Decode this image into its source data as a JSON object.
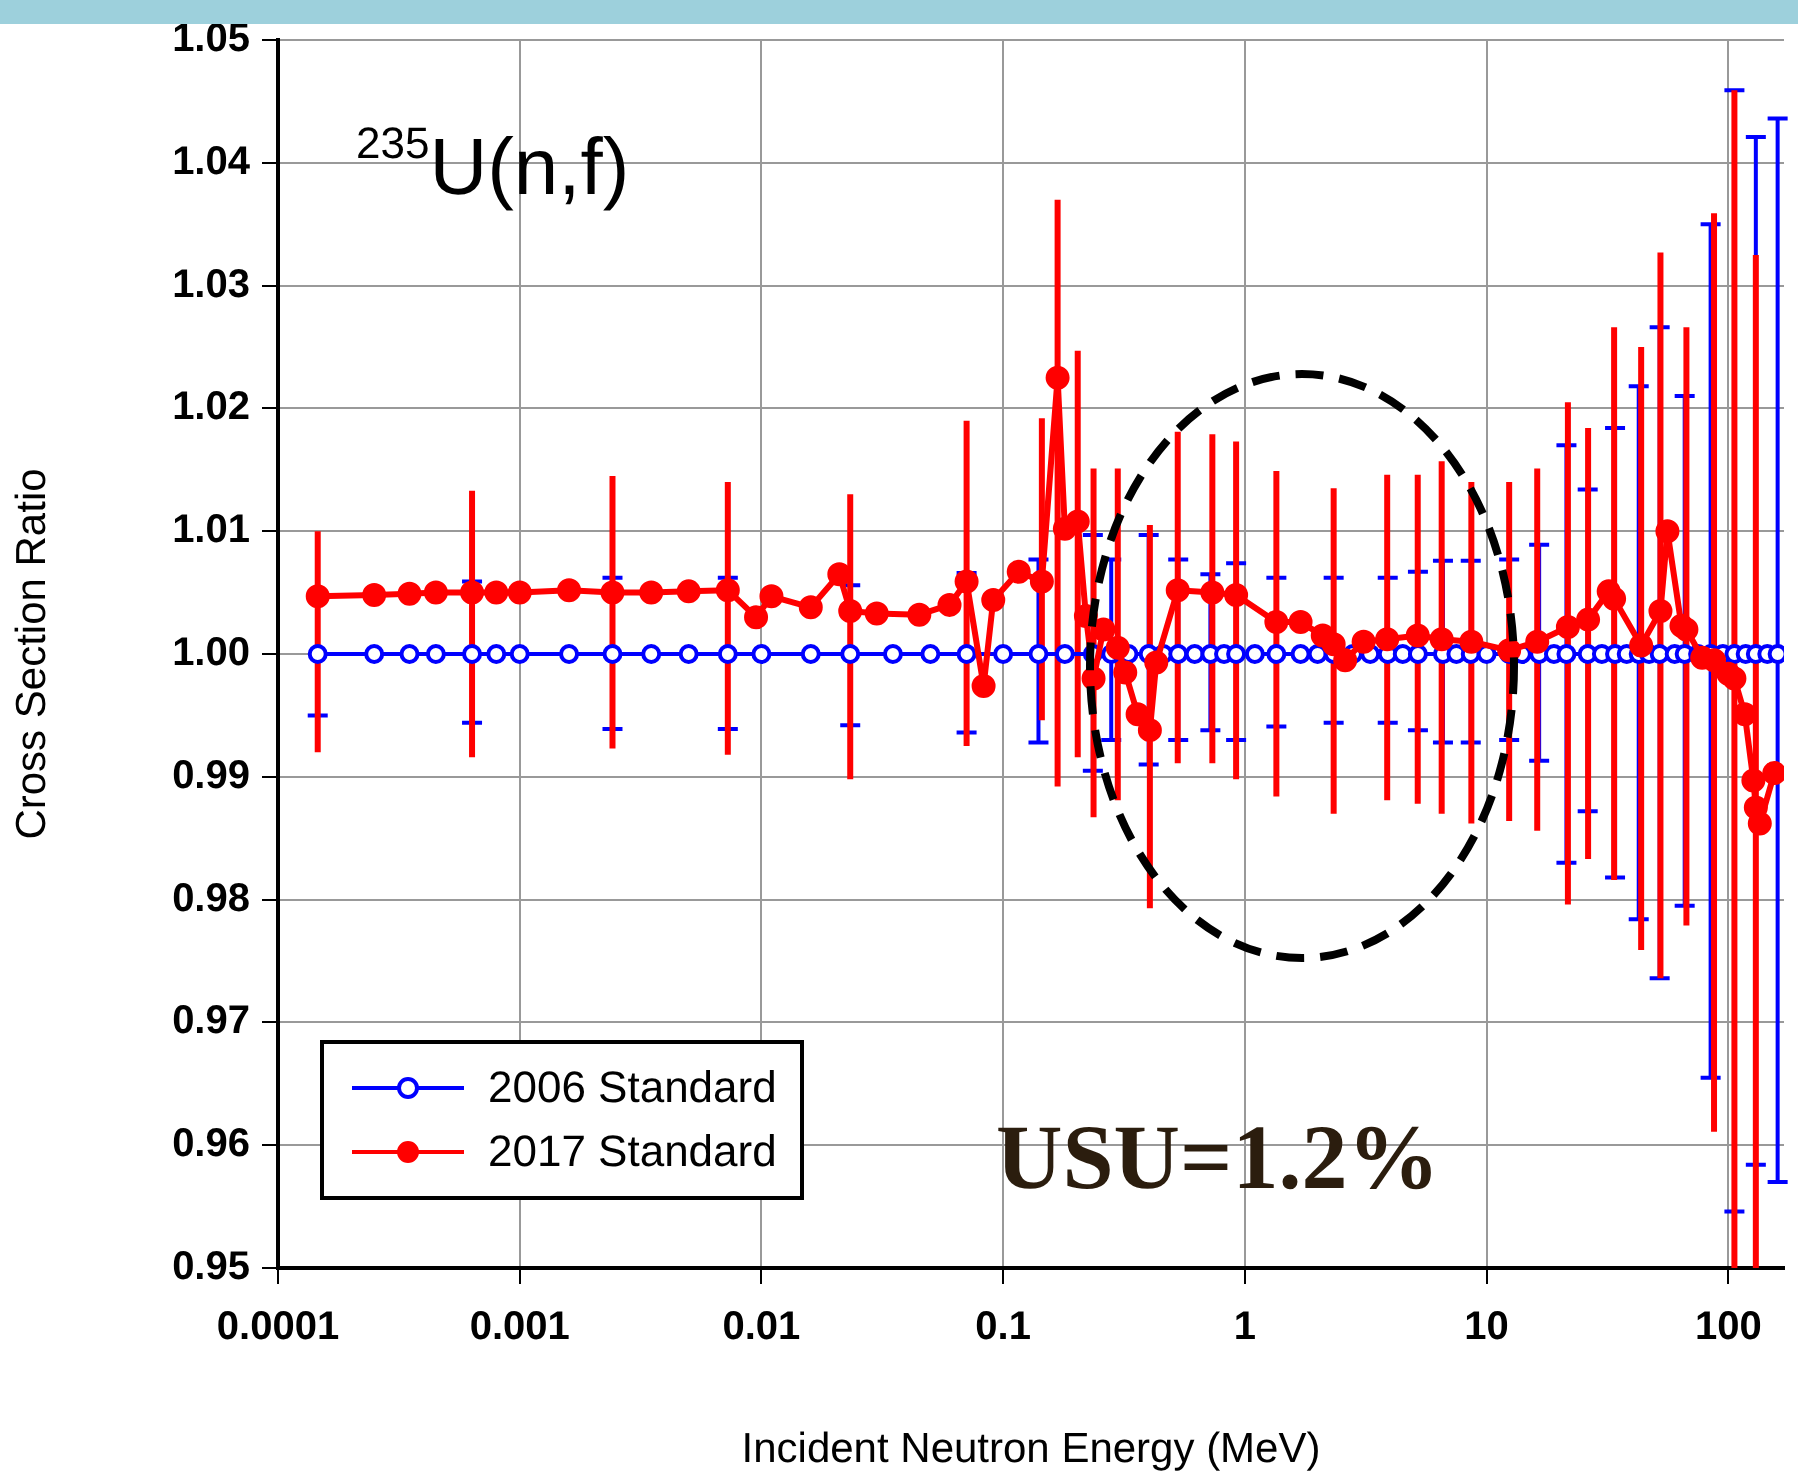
{
  "chart_data": {
    "type": "line",
    "title": "$^{235}$U(n,f)",
    "xlabel": "Incident Neutron Energy (MeV)",
    "ylabel": "Cross Section Ratio",
    "annotations": [
      "USU=1.2%"
    ],
    "log": "x",
    "xlim": [
      0.0001,
      170
    ],
    "xticks": [
      0.0001,
      0.001,
      0.01,
      0.1,
      1,
      10,
      100
    ],
    "ylim": [
      0.95,
      1.05
    ],
    "yticks": [
      0.95,
      0.96,
      0.97,
      0.98,
      0.99,
      {
        "value": 1,
        "label": "1.00"
      },
      1.01,
      1.02,
      1.03,
      1.04,
      1.05
    ],
    "grid": true,
    "legend": "bottom left",
    "marker": "circle",
    "line_style": "solid",
    "series": [
      {
        "name": "2006 Standard",
        "color": "#0000ff",
        "x": [
          0.000146,
          0.00025,
          0.00035,
          0.00045,
          0.000635,
          0.0008,
          0.001,
          0.0016,
          0.00242,
          0.0035,
          0.005,
          0.00726,
          0.01,
          0.016,
          0.0233,
          0.035,
          0.05,
          0.0706,
          0.1,
          0.14,
          0.18,
          0.235,
          0.28,
          0.33,
          0.4,
          0.46,
          0.53,
          0.62,
          0.72,
          0.82,
          0.92,
          1.1,
          1.35,
          1.7,
          2,
          2.33,
          2.8,
          3.3,
          3.9,
          4.5,
          5.2,
          6.6,
          7.5,
          8.6,
          10,
          12.4,
          14,
          16.5,
          19,
          21.4,
          26.2,
          30,
          34,
          38,
          42.6,
          47,
          52,
          60,
          66,
          75,
          84.5,
          95,
          106,
          118,
          130,
          145,
          160
        ],
        "values": [
          1,
          1,
          1,
          1,
          1,
          1,
          1,
          1,
          1,
          1,
          1,
          1,
          1,
          1,
          1,
          1,
          1,
          1,
          1,
          1,
          1,
          1,
          1,
          1,
          1,
          1,
          1,
          1,
          1,
          1,
          1,
          1,
          1,
          1,
          1,
          1,
          1,
          1,
          1,
          1,
          1,
          1,
          1,
          1,
          1,
          1,
          1,
          1,
          1,
          1,
          1,
          1,
          1,
          1,
          1,
          1,
          1,
          1,
          1,
          1,
          1,
          1,
          1,
          1,
          1,
          1,
          1
        ],
        "errors": [
          [
            0.995,
            1.005
          ],
          null,
          null,
          null,
          [
            0.9944,
            1.0059
          ],
          null,
          null,
          null,
          [
            0.9939,
            1.0062
          ],
          null,
          null,
          [
            0.9939,
            1.0062
          ],
          null,
          null,
          [
            0.9942,
            1.0056
          ],
          null,
          null,
          [
            0.9936,
            1.0066
          ],
          null,
          [
            0.9928,
            1.0077
          ],
          null,
          [
            0.9905,
            1.0097
          ],
          [
            0.993,
            1.0077
          ],
          null,
          [
            0.991,
            1.0097
          ],
          null,
          [
            0.993,
            1.0077
          ],
          null,
          [
            0.9938,
            1.0065
          ],
          null,
          [
            0.993,
            1.0074
          ],
          null,
          [
            0.9941,
            1.0062
          ],
          null,
          null,
          [
            0.9944,
            1.0062
          ],
          null,
          null,
          [
            0.9944,
            1.0062
          ],
          null,
          [
            0.9938,
            1.0067
          ],
          [
            0.9928,
            1.0076
          ],
          null,
          [
            0.9928,
            1.0076
          ],
          null,
          [
            0.993,
            1.0077
          ],
          null,
          [
            0.9913,
            1.0089
          ],
          null,
          [
            0.983,
            1.017
          ],
          [
            0.9872,
            1.0134
          ],
          null,
          [
            0.9818,
            1.0184
          ],
          null,
          [
            0.9784,
            1.0218
          ],
          null,
          [
            0.9736,
            1.0266
          ],
          null,
          [
            0.9795,
            1.021
          ],
          null,
          [
            0.9655,
            1.035
          ],
          null,
          [
            0.9546,
            1.0459
          ],
          null,
          [
            0.9584,
            1.0421
          ],
          null,
          [
            0.957,
            1.0436
          ]
        ]
      },
      {
        "name": "2017 Standard",
        "color": "#ff0000",
        "x": [
          0.000146,
          0.00025,
          0.00035,
          0.00045,
          0.000635,
          0.0008,
          0.001,
          0.0016,
          0.00242,
          0.0035,
          0.005,
          0.00726,
          0.0095,
          0.011,
          0.016,
          0.021,
          0.0233,
          0.03,
          0.045,
          0.06,
          0.0706,
          0.083,
          0.091,
          0.116,
          0.1446,
          0.168,
          0.18,
          0.2035,
          0.22,
          0.2366,
          0.26,
          0.298,
          0.32,
          0.36,
          0.4046,
          0.43,
          0.5276,
          0.7336,
          0.92,
          1.35,
          1.7,
          2.1,
          2.33,
          2.6,
          3.1,
          3.88,
          5.19,
          6.52,
          8.65,
          12.4,
          16.2,
          21.7,
          26.3,
          32,
          33.7,
          43.6,
          52.4,
          56,
          64,
          67.1,
          78,
          87.3,
          100,
          106,
          117,
          127,
          130,
          135,
          155
        ],
        "values": [
          1.0047,
          1.0048,
          1.0049,
          1.005,
          1.005,
          1.005,
          1.005,
          1.0052,
          1.005,
          1.005,
          1.0051,
          1.0052,
          1.003,
          1.0047,
          1.0038,
          1.0065,
          1.0035,
          1.0033,
          1.0032,
          1.004,
          1.0059,
          0.9974,
          1.0044,
          1.0067,
          1.0059,
          1.0225,
          1.0102,
          1.0108,
          1.0031,
          0.998,
          1.002,
          1.0005,
          0.9985,
          0.9951,
          0.9938,
          0.9993,
          1.0052,
          1.005,
          1.0048,
          1.0026,
          1.0026,
          1.0015,
          1.0008,
          0.9995,
          1.001,
          1.0012,
          1.0015,
          1.0012,
          1.001,
          1.0003,
          1.001,
          1.0022,
          1.0028,
          1.0051,
          1.0045,
          1.0007,
          1.0035,
          1.01,
          1.0023,
          1.002,
          0.9997,
          0.9995,
          0.9984,
          0.998,
          0.9951,
          0.9897,
          0.9875,
          0.9862,
          0.9903
        ],
        "errors": [
          [
            0.992,
            1.01
          ],
          null,
          null,
          null,
          [
            0.9916,
            1.0133
          ],
          null,
          null,
          null,
          [
            0.9923,
            1.0145
          ],
          null,
          null,
          [
            0.9918,
            1.014
          ],
          null,
          null,
          null,
          null,
          [
            0.9898,
            1.013
          ],
          null,
          null,
          null,
          [
            0.9925,
            1.019
          ],
          null,
          null,
          null,
          [
            0.9946,
            1.0192
          ],
          [
            0.9892,
            1.037
          ],
          null,
          [
            0.9916,
            1.0247
          ],
          null,
          [
            0.9867,
            1.0151
          ],
          null,
          [
            0.9881,
            1.0151
          ],
          null,
          null,
          [
            0.9793,
            1.0105
          ],
          null,
          [
            0.9911,
            1.0181
          ],
          [
            0.9911,
            1.0179
          ],
          [
            0.9898,
            1.0173
          ],
          [
            0.9884,
            1.0149
          ],
          null,
          null,
          [
            0.987,
            1.0135
          ],
          null,
          null,
          [
            0.9881,
            1.0146
          ],
          [
            0.9878,
            1.0146
          ],
          [
            0.987,
            1.0157
          ],
          [
            0.9862,
            1.014
          ],
          [
            0.9864,
            1.014
          ],
          [
            0.9856,
            1.0151
          ],
          [
            0.9796,
            1.0205
          ],
          [
            0.9833,
            1.0184
          ],
          null,
          [
            0.9816,
            1.0266
          ],
          [
            0.9759,
            1.025
          ],
          [
            0.9736,
            1.0327
          ],
          null,
          null,
          [
            0.9779,
            1.0266
          ],
          null,
          [
            0.9611,
            1.0359
          ],
          null,
          [
            0.95,
            1.0459
          ],
          null,
          null,
          [
            0.95,
            1.0325
          ],
          null,
          null
        ]
      }
    ]
  }
}
